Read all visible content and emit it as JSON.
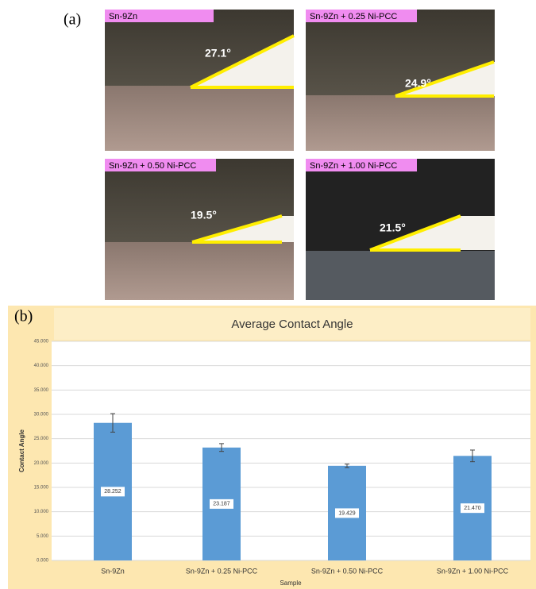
{
  "panel_a": {
    "label": "(a)",
    "images": [
      {
        "caption": "Sn-9Zn",
        "angle_label": "27.1°"
      },
      {
        "caption": "Sn-9Zn + 0.25 Ni-PCC",
        "angle_label": "24.9°"
      },
      {
        "caption": "Sn-9Zn + 0.50 Ni-PCC",
        "angle_label": "19.5°"
      },
      {
        "caption": "Sn-9Zn + 1.00 Ni-PCC",
        "angle_label": "21.5°"
      }
    ]
  },
  "panel_b_label": "(b)",
  "chart_data": {
    "type": "bar",
    "title": "Average Contact Angle",
    "x_label": "Sample",
    "y_label": "Contact Angle",
    "categories": [
      "Sn-9Zn",
      "Sn-9Zn + 0.25 Ni-PCC",
      "Sn-9Zn + 0.50 Ni-PCC",
      "Sn-9Zn + 1.00 Ni-PCC"
    ],
    "values": [
      28.252,
      23.187,
      19.429,
      21.47
    ],
    "value_labels": [
      "28.252",
      "23.187",
      "19.429",
      "21.470"
    ],
    "errors": [
      1.9,
      0.8,
      0.35,
      1.2
    ],
    "color": "#5b9bd5",
    "grid": true,
    "ylim": [
      0,
      45
    ],
    "yticks": [
      {
        "value": 0,
        "label": "0.000"
      },
      {
        "value": 5,
        "label": "5.000"
      },
      {
        "value": 10,
        "label": "10.000"
      },
      {
        "value": 15,
        "label": "15.000"
      },
      {
        "value": 20,
        "label": "20.000"
      },
      {
        "value": 25,
        "label": "25.000"
      },
      {
        "value": 30,
        "label": "30.000"
      },
      {
        "value": 35,
        "label": "35.000"
      },
      {
        "value": 40,
        "label": "40.000"
      },
      {
        "value": 45,
        "label": "45.000"
      }
    ]
  }
}
